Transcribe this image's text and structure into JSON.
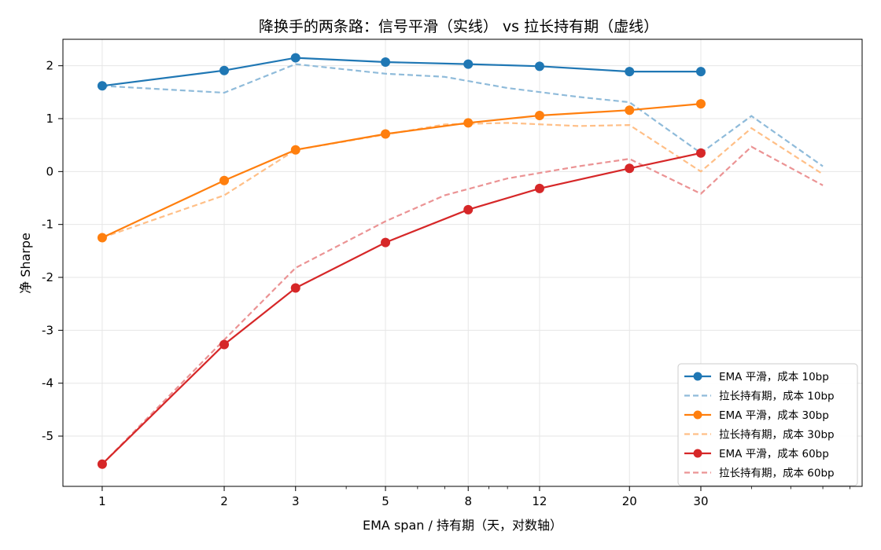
{
  "chart_data": {
    "type": "line",
    "title": "降换手的两条路：信号平滑（实线） vs 拉长持有期（虚线）",
    "xlabel": "EMA span / 持有期（天，对数轴）",
    "ylabel": "净 Sharpe",
    "x_scale": "log",
    "xlim": [
      0.8,
      75
    ],
    "ylim": [
      -5.95,
      2.5
    ],
    "x_ticks": [
      1,
      2,
      3,
      5,
      8,
      12,
      20,
      30
    ],
    "x_tick_labels": [
      "1",
      "2",
      "3",
      "5",
      "8",
      "12",
      "20",
      "30"
    ],
    "y_ticks": [
      2,
      1,
      0,
      -1,
      -2,
      -3,
      -4,
      -5
    ],
    "y_tick_labels": [
      "2",
      "1",
      "0",
      "-1",
      "-2",
      "-3",
      "-4",
      "-5"
    ],
    "grid": true,
    "legend_position": "bottom-right",
    "series": [
      {
        "name": "EMA 平滑，成本 10bp",
        "style": "solid-marker",
        "color": "#1f77b4",
        "x": [
          1,
          2,
          3,
          5,
          8,
          12,
          20,
          30
        ],
        "y": [
          1.62,
          1.91,
          2.15,
          2.07,
          2.03,
          1.99,
          1.89,
          1.89
        ]
      },
      {
        "name": "拉长持有期，成本 10bp",
        "style": "dashed",
        "color": "#1f77b4",
        "x": [
          1,
          2,
          3,
          5,
          7,
          10,
          15,
          20,
          30,
          40,
          60
        ],
        "y": [
          1.62,
          1.49,
          2.03,
          1.85,
          1.79,
          1.58,
          1.41,
          1.31,
          0.35,
          1.05,
          0.1
        ]
      },
      {
        "name": "EMA 平滑，成本 30bp",
        "style": "solid-marker",
        "color": "#ff7f0e",
        "x": [
          1,
          2,
          3,
          5,
          8,
          12,
          20,
          30
        ],
        "y": [
          -1.25,
          -0.17,
          0.41,
          0.71,
          0.92,
          1.06,
          1.16,
          1.28
        ]
      },
      {
        "name": "拉长持有期，成本 30bp",
        "style": "dashed",
        "color": "#ff7f0e",
        "x": [
          1,
          2,
          3,
          5,
          7,
          10,
          15,
          20,
          30,
          40,
          60
        ],
        "y": [
          -1.25,
          -0.45,
          0.41,
          0.7,
          0.89,
          0.92,
          0.86,
          0.88,
          0.0,
          0.82,
          -0.05
        ]
      },
      {
        "name": "EMA 平滑，成本 60bp",
        "style": "solid-marker",
        "color": "#d62728",
        "x": [
          1,
          2,
          3,
          5,
          8,
          12,
          20,
          30
        ],
        "y": [
          -5.53,
          -3.27,
          -2.2,
          -1.34,
          -0.72,
          -0.32,
          0.06,
          0.35
        ]
      },
      {
        "name": "拉长持有期，成本 60bp",
        "style": "dashed",
        "color": "#d62728",
        "x": [
          1,
          2,
          3,
          5,
          7,
          10,
          15,
          20,
          30,
          40,
          60
        ],
        "y": [
          -5.53,
          -3.18,
          -1.82,
          -0.94,
          -0.45,
          -0.13,
          0.1,
          0.24,
          -0.42,
          0.47,
          -0.26
        ]
      }
    ]
  }
}
